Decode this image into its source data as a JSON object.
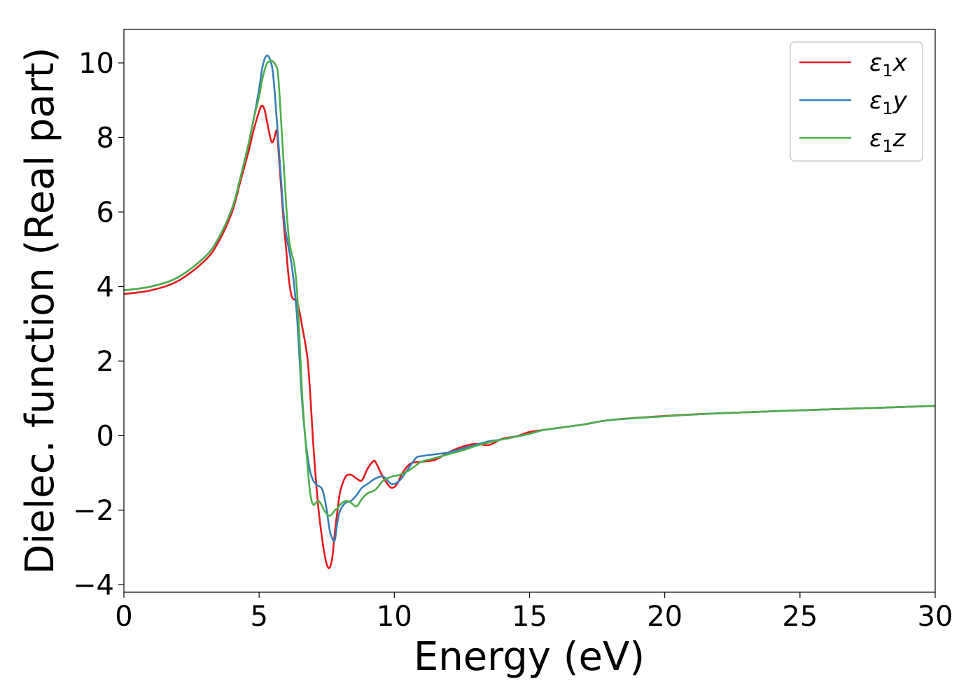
{
  "chart_data": {
    "type": "line",
    "xlabel": "Energy (eV)",
    "ylabel": "Dielec. function (Real part)",
    "xlim": [
      0,
      30
    ],
    "ylim": [
      -4.2,
      10.9
    ],
    "xticks": [
      0,
      5,
      10,
      15,
      20,
      25,
      30
    ],
    "yticks": [
      -4,
      -2,
      0,
      2,
      4,
      6,
      8,
      10
    ],
    "grid": false,
    "legend_position": "top-right",
    "series": [
      {
        "name": "ε1x",
        "legend": {
          "symbol": "ε",
          "sub": "1",
          "suffix": "x"
        },
        "color": "#e41a1c",
        "x": [
          0,
          1,
          2,
          3,
          3.5,
          4,
          4.3,
          4.6,
          4.8,
          5.0,
          5.1,
          5.2,
          5.3,
          5.45,
          5.55,
          5.65,
          5.7,
          5.8,
          5.9,
          6.0,
          6.1,
          6.2,
          6.3,
          6.4,
          6.5,
          6.6,
          6.7,
          6.8,
          6.9,
          7.0,
          7.1,
          7.2,
          7.3,
          7.4,
          7.5,
          7.6,
          7.7,
          7.8,
          7.9,
          8.0,
          8.2,
          8.4,
          8.6,
          8.8,
          9.0,
          9.2,
          9.3,
          9.5,
          9.7,
          9.9,
          10.1,
          10.3,
          10.6,
          11.0,
          11.5,
          12.0,
          12.5,
          13.0,
          13.5,
          14.0,
          14.5,
          15.0,
          15.5,
          16.0,
          17.0,
          18.0,
          20.0,
          22.0,
          25.0,
          28.0,
          30.0
        ],
        "y": [
          3.8,
          3.9,
          4.15,
          4.7,
          5.2,
          6.0,
          6.8,
          7.6,
          8.2,
          8.7,
          8.85,
          8.75,
          8.4,
          7.9,
          7.95,
          8.2,
          7.8,
          6.8,
          5.8,
          5.0,
          4.2,
          3.75,
          3.65,
          3.6,
          3.3,
          2.9,
          2.5,
          2.0,
          1.0,
          -0.2,
          -1.2,
          -2.0,
          -2.6,
          -3.1,
          -3.45,
          -3.55,
          -3.3,
          -2.6,
          -2.0,
          -1.5,
          -1.1,
          -1.05,
          -1.15,
          -1.2,
          -0.9,
          -0.7,
          -0.7,
          -1.0,
          -1.25,
          -1.4,
          -1.3,
          -1.0,
          -0.75,
          -0.7,
          -0.65,
          -0.45,
          -0.3,
          -0.22,
          -0.25,
          -0.08,
          -0.02,
          0.1,
          0.15,
          0.2,
          0.3,
          0.42,
          0.53,
          0.6,
          0.68,
          0.75,
          0.8
        ]
      },
      {
        "name": "ε1y",
        "legend": {
          "symbol": "ε",
          "sub": "1",
          "suffix": "y"
        },
        "color": "#377eb8",
        "x": [
          0,
          1,
          2,
          3,
          3.5,
          4,
          4.3,
          4.6,
          4.8,
          5.0,
          5.1,
          5.2,
          5.3,
          5.4,
          5.5,
          5.6,
          5.7,
          5.8,
          5.9,
          6.0,
          6.1,
          6.2,
          6.3,
          6.4,
          6.5,
          6.6,
          6.7,
          6.8,
          6.9,
          7.0,
          7.1,
          7.2,
          7.3,
          7.4,
          7.5,
          7.6,
          7.7,
          7.8,
          7.9,
          8.0,
          8.2,
          8.4,
          8.6,
          8.8,
          9.0,
          9.3,
          9.6,
          9.9,
          10.2,
          10.5,
          10.8,
          11.0,
          11.5,
          12.0,
          12.5,
          13.0,
          13.5,
          14.0,
          14.5,
          15.0,
          15.5,
          16.0,
          17.0,
          18.0,
          20.0,
          22.0,
          25.0,
          28.0,
          30.0
        ],
        "y": [
          3.9,
          4.0,
          4.25,
          4.8,
          5.3,
          6.1,
          6.9,
          7.8,
          8.5,
          9.3,
          9.8,
          10.1,
          10.2,
          10.1,
          9.8,
          9.0,
          8.0,
          7.0,
          6.0,
          5.4,
          5.0,
          4.6,
          4.0,
          3.2,
          2.0,
          0.8,
          0.0,
          -0.6,
          -1.0,
          -1.2,
          -1.3,
          -1.35,
          -1.4,
          -1.6,
          -2.0,
          -2.5,
          -2.75,
          -2.8,
          -2.3,
          -2.0,
          -1.8,
          -1.75,
          -1.6,
          -1.4,
          -1.3,
          -1.15,
          -1.1,
          -1.3,
          -1.2,
          -0.9,
          -0.6,
          -0.55,
          -0.5,
          -0.45,
          -0.35,
          -0.25,
          -0.15,
          -0.1,
          -0.02,
          0.05,
          0.15,
          0.2,
          0.3,
          0.42,
          0.52,
          0.6,
          0.68,
          0.75,
          0.8
        ]
      },
      {
        "name": "ε1z",
        "legend": {
          "symbol": "ε",
          "sub": "1",
          "suffix": "z"
        },
        "color": "#4daf4a",
        "x": [
          0,
          1,
          2,
          3,
          3.5,
          4,
          4.3,
          4.6,
          4.8,
          5.0,
          5.1,
          5.2,
          5.3,
          5.4,
          5.5,
          5.6,
          5.7,
          5.8,
          5.9,
          6.0,
          6.1,
          6.2,
          6.3,
          6.4,
          6.5,
          6.6,
          6.7,
          6.8,
          6.9,
          7.0,
          7.1,
          7.2,
          7.3,
          7.4,
          7.5,
          7.6,
          7.7,
          7.8,
          7.9,
          8.0,
          8.2,
          8.4,
          8.6,
          8.8,
          9.0,
          9.3,
          9.6,
          9.9,
          10.2,
          10.5,
          10.8,
          11.0,
          11.5,
          12.0,
          12.5,
          13.0,
          13.5,
          14.0,
          14.5,
          15.0,
          15.5,
          16.0,
          17.0,
          18.0,
          20.0,
          22.0,
          25.0,
          28.0,
          30.0
        ],
        "y": [
          3.9,
          4.0,
          4.25,
          4.8,
          5.3,
          6.1,
          6.9,
          7.8,
          8.5,
          9.1,
          9.5,
          9.8,
          10.0,
          10.05,
          10.05,
          9.95,
          9.7,
          8.6,
          7.4,
          6.2,
          5.3,
          4.9,
          4.6,
          3.9,
          2.5,
          1.0,
          0.0,
          -0.9,
          -1.6,
          -1.85,
          -1.8,
          -1.75,
          -1.85,
          -2.0,
          -2.1,
          -2.15,
          -2.1,
          -2.0,
          -1.95,
          -1.85,
          -1.75,
          -1.8,
          -1.9,
          -1.7,
          -1.55,
          -1.45,
          -1.2,
          -1.1,
          -1.05,
          -0.95,
          -0.8,
          -0.7,
          -0.6,
          -0.5,
          -0.4,
          -0.28,
          -0.18,
          -0.1,
          -0.03,
          0.05,
          0.15,
          0.2,
          0.3,
          0.42,
          0.52,
          0.6,
          0.68,
          0.75,
          0.8
        ]
      }
    ]
  }
}
